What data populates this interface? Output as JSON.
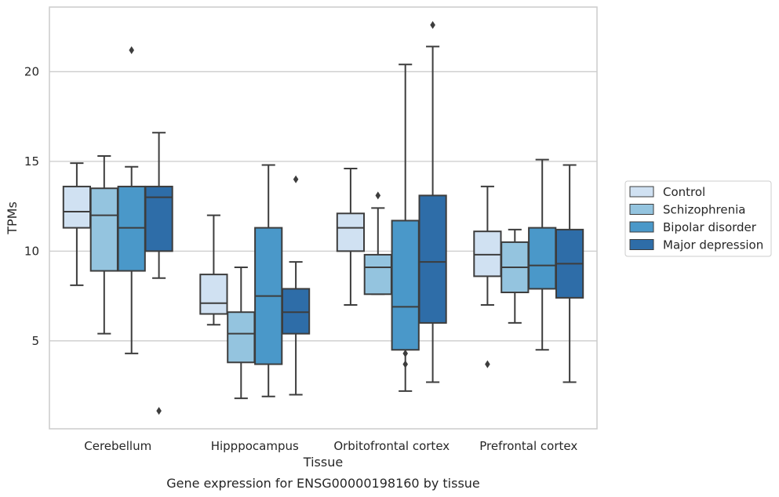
{
  "chart_data": {
    "type": "boxplot",
    "title": "",
    "caption": "Gene expression for ENSG00000198160 by tissue",
    "xlabel": "Tissue",
    "ylabel": "TPMs",
    "ylim": [
      0.1,
      23.6
    ],
    "yticks": [
      5,
      10,
      15,
      20
    ],
    "grid": "horizontal",
    "legend_position": "right",
    "categories": [
      "Cerebellum",
      "Hipppocampus",
      "Orbitofrontal cortex",
      "Prefrontal cortex"
    ],
    "series": [
      {
        "name": "Control",
        "color": "#d0e1f2",
        "boxes": [
          {
            "whislo": 8.1,
            "q1": 11.3,
            "med": 12.2,
            "q3": 13.6,
            "whishi": 14.9,
            "fliers": []
          },
          {
            "whislo": 5.9,
            "q1": 6.5,
            "med": 7.1,
            "q3": 8.7,
            "whishi": 12.0,
            "fliers": []
          },
          {
            "whislo": 7.0,
            "q1": 10.0,
            "med": 11.3,
            "q3": 12.1,
            "whishi": 14.6,
            "fliers": []
          },
          {
            "whislo": 7.0,
            "q1": 8.6,
            "med": 9.8,
            "q3": 11.1,
            "whishi": 13.6,
            "fliers": [
              3.7
            ]
          }
        ]
      },
      {
        "name": "Schizophrenia",
        "color": "#94c4df",
        "boxes": [
          {
            "whislo": 5.4,
            "q1": 8.9,
            "med": 12.0,
            "q3": 13.5,
            "whishi": 15.3,
            "fliers": []
          },
          {
            "whislo": 1.8,
            "q1": 3.8,
            "med": 5.4,
            "q3": 6.6,
            "whishi": 9.1,
            "fliers": []
          },
          {
            "whislo": 7.6,
            "q1": 7.6,
            "med": 9.1,
            "q3": 9.8,
            "whishi": 12.4,
            "fliers": [
              13.1
            ]
          },
          {
            "whislo": 6.0,
            "q1": 7.7,
            "med": 9.1,
            "q3": 10.5,
            "whishi": 11.2,
            "fliers": []
          }
        ]
      },
      {
        "name": "Bipolar disorder",
        "color": "#4a98c9",
        "boxes": [
          {
            "whislo": 4.3,
            "q1": 8.9,
            "med": 11.3,
            "q3": 13.6,
            "whishi": 14.7,
            "fliers": [
              21.2
            ]
          },
          {
            "whislo": 1.9,
            "q1": 3.7,
            "med": 7.5,
            "q3": 11.3,
            "whishi": 14.8,
            "fliers": []
          },
          {
            "whislo": 2.2,
            "q1": 4.5,
            "med": 6.9,
            "q3": 11.7,
            "whishi": 20.4,
            "fliers": [
              4.3,
              3.7
            ]
          },
          {
            "whislo": 4.5,
            "q1": 7.9,
            "med": 9.2,
            "q3": 11.3,
            "whishi": 15.1,
            "fliers": []
          }
        ]
      },
      {
        "name": "Major depression",
        "color": "#2e6da8",
        "boxes": [
          {
            "whislo": 8.5,
            "q1": 10.0,
            "med": 13.0,
            "q3": 13.6,
            "whishi": 16.6,
            "fliers": [
              1.1
            ]
          },
          {
            "whislo": 2.0,
            "q1": 5.4,
            "med": 6.6,
            "q3": 7.9,
            "whishi": 9.4,
            "fliers": [
              14.0
            ]
          },
          {
            "whislo": 2.7,
            "q1": 6.0,
            "med": 9.4,
            "q3": 13.1,
            "whishi": 21.4,
            "fliers": [
              22.6
            ]
          },
          {
            "whislo": 2.7,
            "q1": 7.4,
            "med": 9.3,
            "q3": 11.2,
            "whishi": 14.8,
            "fliers": []
          }
        ]
      }
    ]
  }
}
